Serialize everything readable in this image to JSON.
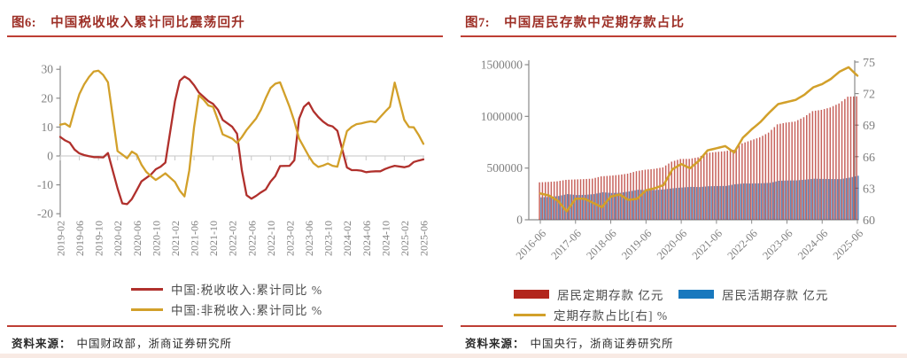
{
  "panels": [
    {
      "fig_label": "图6:",
      "title": "中国税收收入累计同比震荡回升",
      "source_label": "资料来源：",
      "source_text": "中国财政部，浙商证券研究所"
    },
    {
      "fig_label": "图7:",
      "title": "中国居民存款中定期存款占比",
      "source_label": "资料来源：",
      "source_text": "中国央行，浙商证券研究所"
    }
  ],
  "colors": {
    "title_red": "#9D2F26",
    "rule_red": "#BE3E34",
    "axis_gray": "#8a8a8a",
    "tick_label_gray": "#7f7f7f",
    "zero_line_gray": "#d8d8d8"
  },
  "chart_data": [
    {
      "type": "line",
      "title": "中国税收收入累计同比震荡回升",
      "xlabel": "",
      "ylabel": "累计同比 %",
      "ylim": [
        -20,
        30
      ],
      "yticks": [
        30,
        20,
        10,
        0,
        -10,
        -20
      ],
      "x_tick_labels": [
        "2019-02",
        "2019-06",
        "2019-10",
        "2020-02",
        "2020-06",
        "2020-10",
        "2021-02",
        "2021-06",
        "2021-10",
        "2022-02",
        "2022-06",
        "2022-10",
        "2023-02",
        "2023-06",
        "2023-10",
        "2024-02",
        "2024-06",
        "2024-10",
        "2025-02",
        "2025-06"
      ],
      "grid": "zero-line-only",
      "legend_position": "bottom",
      "dates": [
        "2019-02",
        "2019-03",
        "2019-04",
        "2019-05",
        "2019-06",
        "2019-07",
        "2019-08",
        "2019-09",
        "2019-10",
        "2019-11",
        "2019-12",
        "2020-02",
        "2020-03",
        "2020-04",
        "2020-05",
        "2020-06",
        "2020-07",
        "2020-08",
        "2020-09",
        "2020-10",
        "2020-11",
        "2020-12",
        "2021-02",
        "2021-03",
        "2021-04",
        "2021-05",
        "2021-06",
        "2021-07",
        "2021-08",
        "2021-09",
        "2021-10",
        "2021-11",
        "2021-12",
        "2022-02",
        "2022-03",
        "2022-04",
        "2022-05",
        "2022-06",
        "2022-07",
        "2022-08",
        "2022-09",
        "2022-10",
        "2022-11",
        "2022-12",
        "2023-02",
        "2023-03",
        "2023-04",
        "2023-05",
        "2023-06",
        "2023-07",
        "2023-08",
        "2023-09",
        "2023-10",
        "2023-11",
        "2023-12",
        "2024-02",
        "2024-03",
        "2024-04",
        "2024-05",
        "2024-06",
        "2024-07",
        "2024-08",
        "2024-09",
        "2024-10",
        "2024-11",
        "2024-12",
        "2025-02",
        "2025-03",
        "2025-04",
        "2025-05",
        "2025-06"
      ],
      "series": [
        {
          "name": "中国:税收收入:累计同比 %",
          "color": "#B0302C",
          "values": [
            6.6,
            5.4,
            4.6,
            2.2,
            0.9,
            0.3,
            -0.1,
            -0.4,
            -0.4,
            -0.5,
            1.0,
            -11.2,
            -16.4,
            -16.7,
            -14.9,
            -11.9,
            -8.8,
            -7.6,
            -6.4,
            -4.6,
            -3.7,
            -2.3,
            18.9,
            26.0,
            27.5,
            26.5,
            24.5,
            22.0,
            20.5,
            19.0,
            18.0,
            16.0,
            12.5,
            10.1,
            7.7,
            -4.9,
            -13.6,
            -14.8,
            -13.8,
            -12.6,
            -11.6,
            -8.9,
            -7.0,
            -3.5,
            -3.4,
            -1.5,
            12.9,
            17.0,
            18.5,
            15.5,
            13.5,
            11.9,
            10.7,
            10.2,
            8.7,
            -4.0,
            -4.9,
            -4.9,
            -5.1,
            -5.6,
            -5.4,
            -5.3,
            -5.3,
            -4.5,
            -3.9,
            -3.4,
            -3.9,
            -3.5,
            -2.1,
            -1.6,
            -1.2
          ]
        },
        {
          "name": "中国:非税收入:累计同比 %",
          "color": "#D2A02A",
          "values": [
            10.8,
            11.2,
            10.1,
            16.0,
            21.4,
            24.8,
            27.3,
            29.2,
            29.5,
            28.0,
            25.5,
            1.7,
            0.5,
            -0.8,
            1.5,
            0.5,
            -3.0,
            -5.5,
            -7.0,
            -8.3,
            -7.2,
            -6.0,
            -9.0,
            -12.0,
            -14.0,
            -5.0,
            10.0,
            21.0,
            19.5,
            17.5,
            17.0,
            12.5,
            7.5,
            6.0,
            4.5,
            6.5,
            9.0,
            11.0,
            13.0,
            16.0,
            20.0,
            23.5,
            25.0,
            25.5,
            17.0,
            12.0,
            6.0,
            3.0,
            0.0,
            -2.5,
            -3.8,
            -3.3,
            -2.6,
            -3.4,
            -3.7,
            8.6,
            10.1,
            11.0,
            11.3,
            11.7,
            12.0,
            11.7,
            13.5,
            15.3,
            17.0,
            25.4,
            12.5,
            10.0,
            9.9,
            7.3,
            4.2
          ]
        }
      ]
    },
    {
      "type": "bar+line",
      "title": "中国居民存款中定期存款占比",
      "ylim_left": [
        0,
        1500000
      ],
      "yticks_left": [
        0,
        500000,
        1000000,
        1500000
      ],
      "ylim_right": [
        60,
        75
      ],
      "yticks_right": [
        60,
        63,
        66,
        69,
        72,
        75
      ],
      "x_tick_labels": [
        "2016-06",
        "2017-06",
        "2018-06",
        "2019-06",
        "2020-06",
        "2021-06",
        "2022-06",
        "2023-06",
        "2024-06",
        "2025-06"
      ],
      "legend_position": "bottom",
      "dates": [
        "2016-06",
        "2016-09",
        "2016-12",
        "2017-03",
        "2017-06",
        "2017-09",
        "2017-12",
        "2018-03",
        "2018-06",
        "2018-09",
        "2018-12",
        "2019-03",
        "2019-06",
        "2019-09",
        "2019-12",
        "2020-03",
        "2020-06",
        "2020-09",
        "2020-12",
        "2021-03",
        "2021-06",
        "2021-09",
        "2021-12",
        "2022-03",
        "2022-06",
        "2022-09",
        "2022-12",
        "2023-03",
        "2023-06",
        "2023-09",
        "2023-12",
        "2024-03",
        "2024-06",
        "2024-09",
        "2024-12",
        "2025-03",
        "2025-06"
      ],
      "series": [
        {
          "name": "居民定期存款 亿元",
          "type": "bar",
          "axis": "left",
          "color": "#B2261D",
          "values": [
            362000,
            366000,
            372000,
            386000,
            390000,
            393000,
            398000,
            420000,
            426000,
            434000,
            446000,
            470000,
            484000,
            492000,
            507000,
            562000,
            588000,
            589000,
            604000,
            646000,
            655000,
            663000,
            677000,
            739000,
            768000,
            797000,
            843000,
            923000,
            940000,
            950000,
            992000,
            1051000,
            1063000,
            1086000,
            1125000,
            1190000,
            1194000
          ]
        },
        {
          "name": "居民活期存款 亿元",
          "type": "bar",
          "axis": "left",
          "color": "#2E6BAC",
          "legend_color": "#1878BE",
          "values": [
            217000,
            221000,
            230000,
            248000,
            239000,
            241000,
            248000,
            266000,
            259000,
            261000,
            274000,
            290000,
            287000,
            288000,
            294000,
            305000,
            312000,
            318000,
            316000,
            324000,
            326000,
            327000,
            343000,
            351000,
            351000,
            353000,
            357000,
            377000,
            380000,
            381000,
            388000,
            397000,
            395000,
            394000,
            393000,
            407000,
            426000
          ]
        },
        {
          "name": "定期存款占比[右] %",
          "type": "line",
          "axis": "right",
          "color": "#D2A02A",
          "values": [
            62.5,
            62.3,
            61.8,
            60.8,
            62.0,
            62.0,
            61.6,
            61.2,
            62.2,
            62.4,
            61.9,
            62.0,
            62.8,
            63.0,
            63.3,
            64.8,
            65.3,
            64.9,
            65.6,
            66.6,
            66.8,
            67.0,
            66.4,
            67.8,
            68.6,
            69.3,
            70.2,
            71.0,
            71.2,
            71.4,
            71.9,
            72.6,
            72.9,
            73.4,
            74.1,
            74.5,
            73.7
          ]
        }
      ]
    }
  ]
}
